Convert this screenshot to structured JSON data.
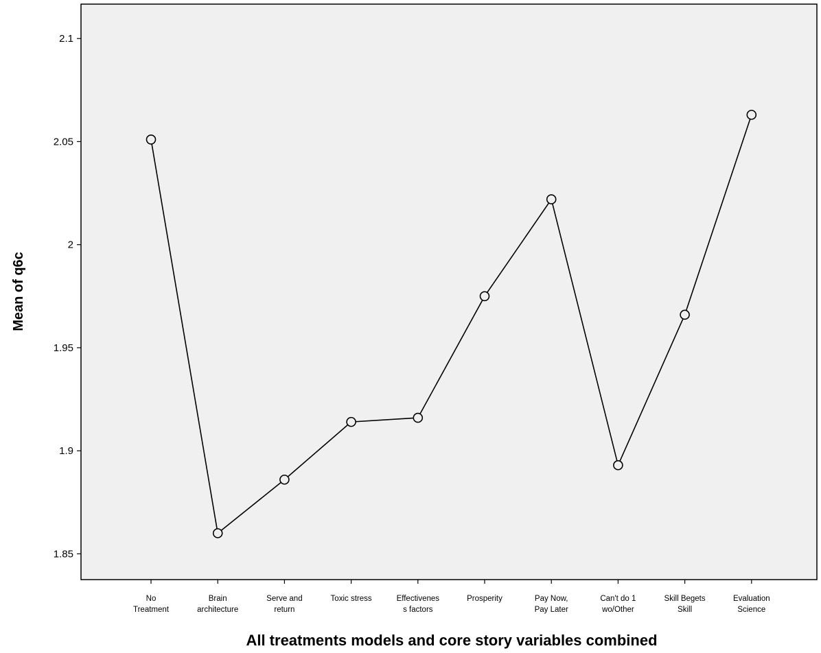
{
  "chart_data": {
    "type": "line",
    "title": "",
    "xlabel": "All treatments models and core story variables combined",
    "ylabel": "Mean of q6c",
    "categories": [
      [
        "No",
        "Treatment"
      ],
      [
        "Brain",
        "architecture"
      ],
      [
        "Serve and",
        "return"
      ],
      [
        "Toxic stress"
      ],
      [
        "Effectivenes",
        "s factors"
      ],
      [
        "Prosperity"
      ],
      [
        "Pay Now,",
        "Pay Later"
      ],
      [
        "Can't do 1",
        "wo/Other"
      ],
      [
        "Skill Begets",
        "Skill"
      ],
      [
        "Evaluation",
        "Science"
      ]
    ],
    "values": [
      2.051,
      1.86,
      1.886,
      1.914,
      1.916,
      1.975,
      2.022,
      1.893,
      1.966,
      2.063
    ],
    "ylim": [
      1.8375,
      2.1167
    ],
    "yticks": [
      {
        "value": 1.85,
        "label": "1.85"
      },
      {
        "value": 1.9,
        "label": "1.9"
      },
      {
        "value": 1.95,
        "label": "1.95"
      },
      {
        "value": 2.0,
        "label": "2"
      },
      {
        "value": 2.05,
        "label": "2.05"
      },
      {
        "value": 2.1,
        "label": "2.1"
      }
    ],
    "grid": false,
    "legend": "none",
    "marker": "open-circle",
    "colors": {
      "background": "#f0f0f0",
      "line": "#000000"
    }
  }
}
